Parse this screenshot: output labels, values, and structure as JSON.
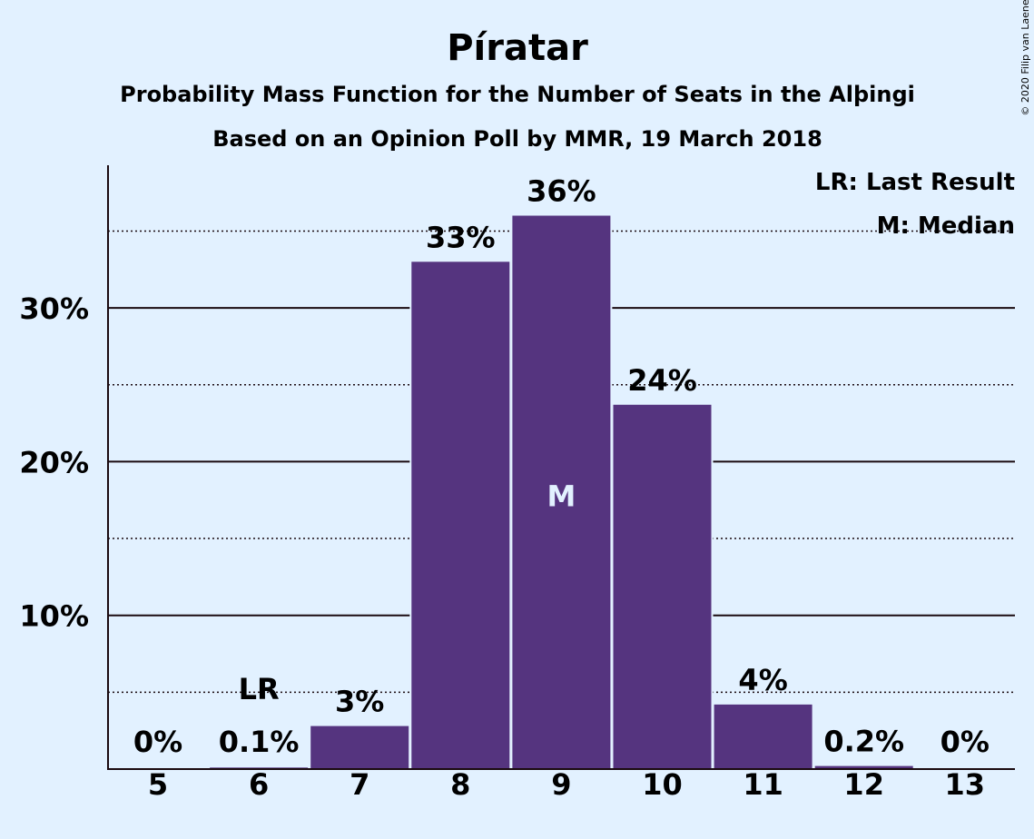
{
  "chart_data": {
    "type": "bar",
    "title": "Píratar",
    "subtitle": "Probability Mass Function for the Number of Seats in the Alþingi",
    "subtitle2": "Based on an Opinion Poll by MMR, 19 March 2018",
    "credit": "© 2020 Filip van Laenen",
    "categories": [
      "5",
      "6",
      "7",
      "8",
      "9",
      "10",
      "11",
      "12",
      "13"
    ],
    "values": [
      0,
      0.1,
      2.8,
      33,
      36,
      23.7,
      4.2,
      0.2,
      0
    ],
    "value_labels": [
      "0%",
      "0.1%",
      "3%",
      "33%",
      "36%",
      "24%",
      "4%",
      "0.2%",
      "0%"
    ],
    "ylim": [
      0,
      39
    ],
    "yticks": [
      10,
      20,
      30
    ],
    "ytick_labels": [
      "10%",
      "20%",
      "30%"
    ],
    "minor_gridlines": [
      5,
      15,
      25,
      35
    ],
    "grid": true,
    "last_result_index": 1,
    "last_result_marker": "LR",
    "median_index": 4,
    "median_marker": "M",
    "legend": {
      "placement": "top-right",
      "items": [
        "LR: Last Result",
        "M: Median"
      ]
    },
    "colors": {
      "bar": "#55347f",
      "background": "#e2f1ff",
      "text": "#1a0a10",
      "median_text": "#e2f1ff"
    }
  }
}
